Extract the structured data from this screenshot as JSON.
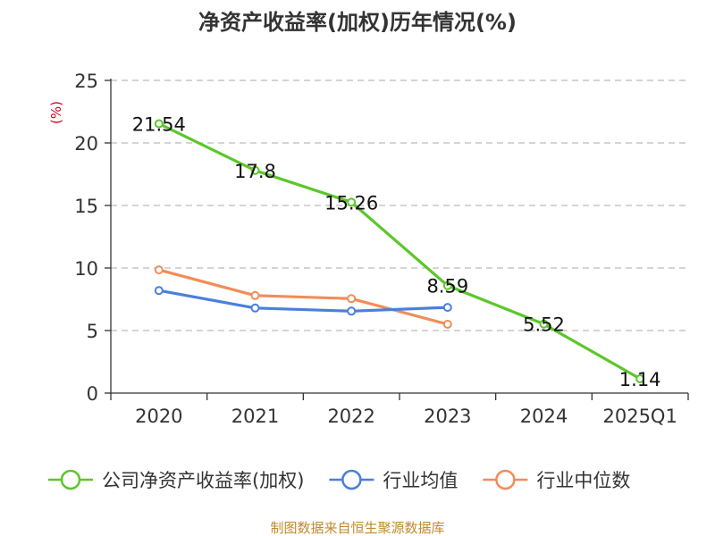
{
  "chart_data": {
    "type": "line",
    "title": "净资产收益率(加权)历年情况(%)",
    "ylabel": "(%)",
    "xlabel": "",
    "categories": [
      "2020",
      "2021",
      "2022",
      "2023",
      "2024",
      "2025Q1"
    ],
    "yticks": [
      0,
      5,
      10,
      15,
      20,
      25
    ],
    "ylim": [
      0,
      25
    ],
    "grid": true,
    "legend_position": "bottom",
    "series": [
      {
        "name": "公司净资产收益率(加权)",
        "color": "#5cc72a",
        "values": [
          21.54,
          17.8,
          15.26,
          8.59,
          5.52,
          1.14
        ],
        "labels": [
          "21.54",
          "17.8",
          "15.26",
          "8.59",
          "5.52",
          "1.14"
        ]
      },
      {
        "name": "行业均值",
        "color": "#4a7fdc",
        "values": [
          8.2,
          6.8,
          6.55,
          6.85,
          null,
          null
        ]
      },
      {
        "name": "行业中位数",
        "color": "#f28c58",
        "values": [
          9.85,
          7.8,
          7.55,
          5.5,
          null,
          null
        ]
      }
    ]
  },
  "footer": {
    "source": "制图数据来自恒生聚源数据库"
  }
}
